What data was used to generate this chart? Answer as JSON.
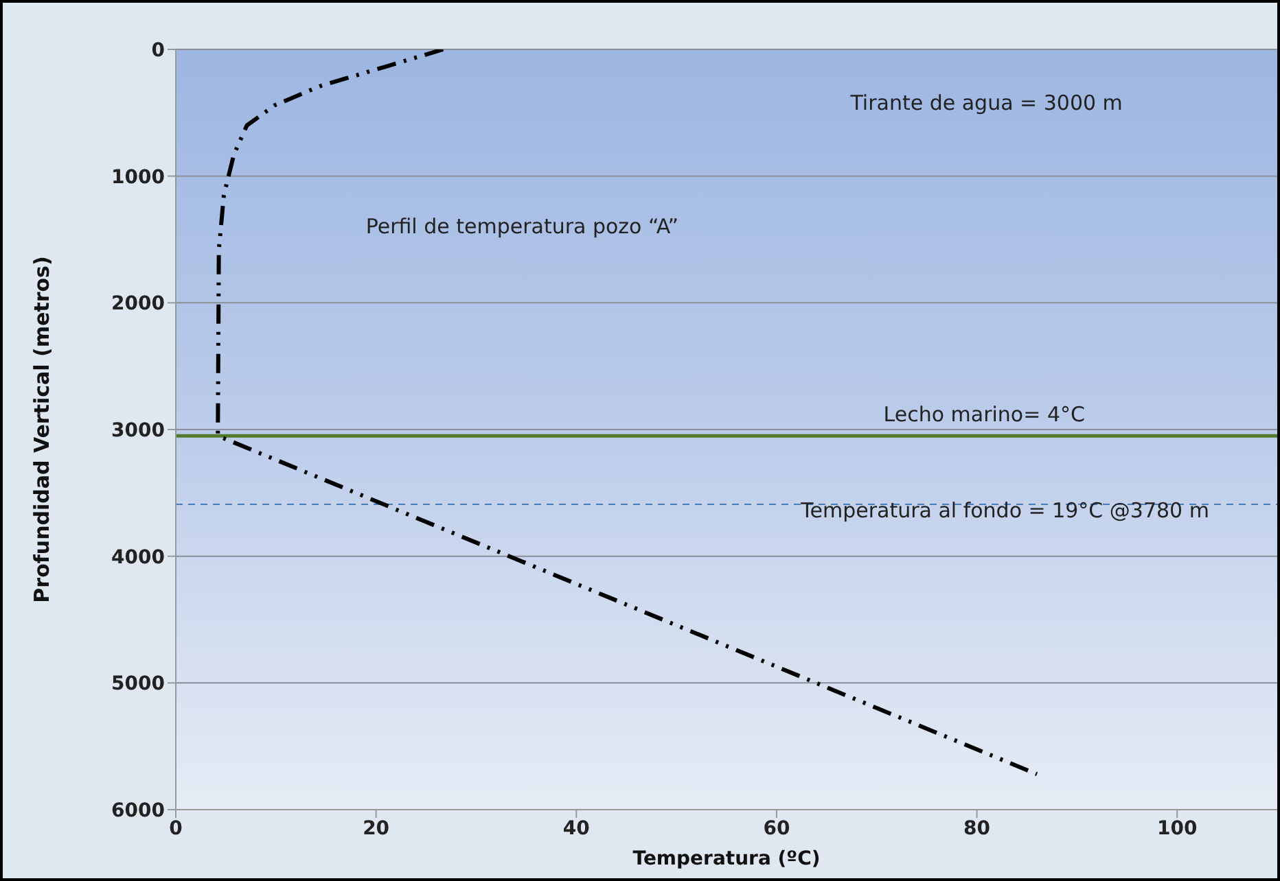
{
  "chart_data": {
    "type": "line",
    "xlabel": "Temperatura (ºC)",
    "ylabel": "Profundidad Vertical (metros)",
    "series": [
      {
        "x": [
          26.7,
          21.2,
          14.4,
          9.9,
          7.1,
          5.8,
          4.8,
          4.3,
          4.2,
          86
        ],
        "values": [
          0,
          130,
          290,
          440,
          600,
          830,
          1150,
          1580,
          3050,
          5720
        ],
        "color": "#000000",
        "line_style": "dashed"
      }
    ],
    "xlim": [
      0,
      110
    ],
    "xticks": [
      0,
      20,
      40,
      60,
      80,
      100
    ],
    "ylim": [
      6000,
      0
    ],
    "yticks": [
      0,
      1000,
      2000,
      3000,
      4000,
      5000,
      6000
    ],
    "grid": "y",
    "marker": "none",
    "ref_lines": [
      {
        "axis": "y",
        "value": 3050,
        "color": "#4f7a28",
        "line_style": "solid"
      },
      {
        "axis": "y",
        "value": 3590,
        "color": "#4a7ebb",
        "line_style": "dashed"
      }
    ],
    "annotations": [
      "Tirante de agua = 3000  m",
      "Perfil de temperatura pozo “A”",
      "Lecho marino= 4°C",
      "Temperatura al fondo = 19°C  @3780  m"
    ]
  }
}
